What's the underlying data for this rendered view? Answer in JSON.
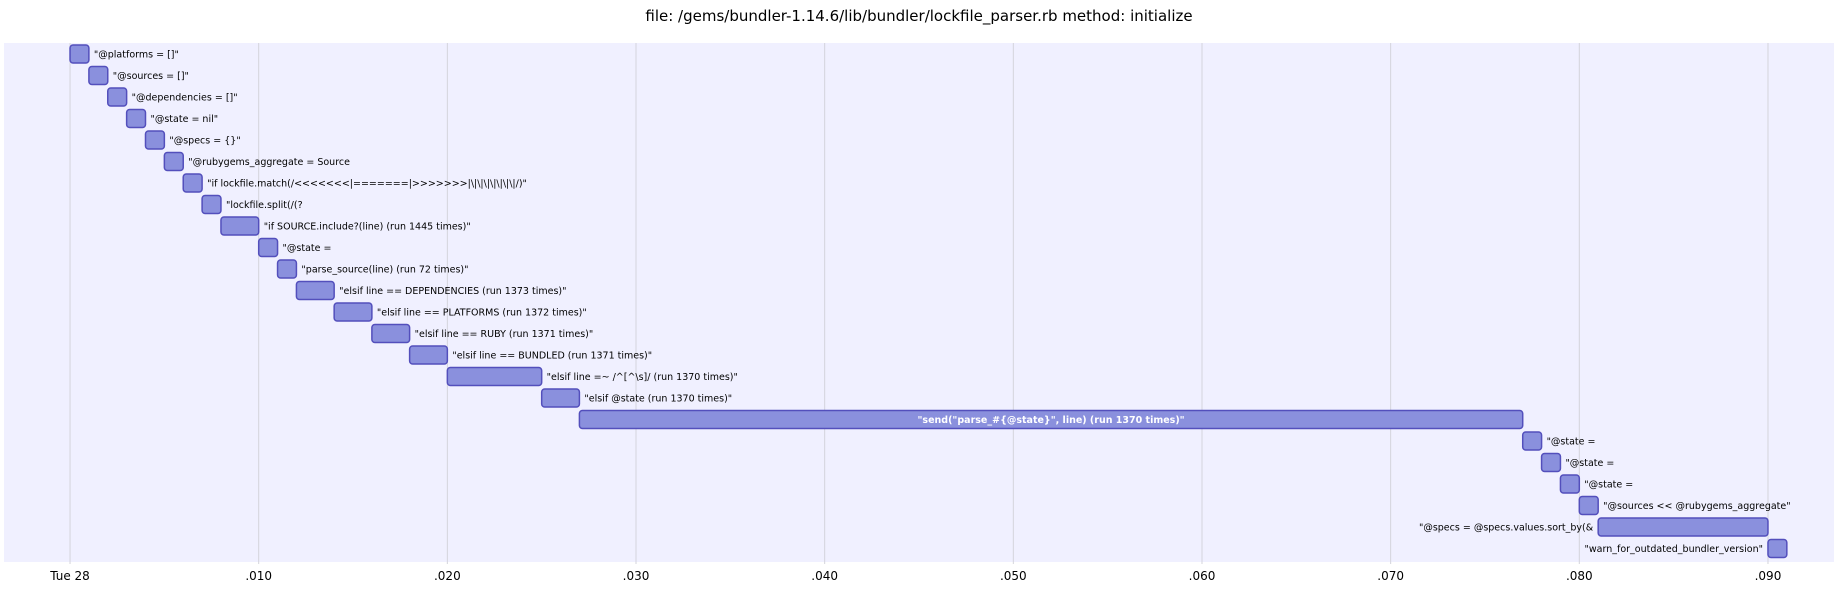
{
  "chart_data": {
    "type": "gantt",
    "title": "file: /gems/bundler-1.14.6/lib/bundler/lockfile_parser.rb method: initialize",
    "x_ticks": [
      {
        "value": 0.0,
        "label": "Tue 28"
      },
      {
        "value": 0.01,
        "label": ".010"
      },
      {
        "value": 0.02,
        "label": ".020"
      },
      {
        "value": 0.03,
        "label": ".030"
      },
      {
        "value": 0.04,
        "label": ".040"
      },
      {
        "value": 0.05,
        "label": ".050"
      },
      {
        "value": 0.06,
        "label": ".060"
      },
      {
        "value": 0.07,
        "label": ".070"
      },
      {
        "value": 0.08,
        "label": ".080"
      },
      {
        "value": 0.09,
        "label": ".090"
      }
    ],
    "xlim": [
      -0.0035,
      0.0935
    ],
    "grid": true,
    "colors": {
      "band": "#f0f0ff",
      "bar_fill": "#8a90dd",
      "bar_stroke": "#534fbc",
      "grid": "#d4d4dc"
    },
    "tasks": [
      {
        "label": "\"@platforms = []\"",
        "start": 0.0,
        "end": 0.001
      },
      {
        "label": "\"@sources = []\"",
        "start": 0.001,
        "end": 0.002
      },
      {
        "label": "\"@dependencies = []\"",
        "start": 0.002,
        "end": 0.003
      },
      {
        "label": "\"@state = nil\"",
        "start": 0.003,
        "end": 0.004
      },
      {
        "label": "\"@specs = {}\"",
        "start": 0.004,
        "end": 0.005
      },
      {
        "label": "\"@rubygems_aggregate = Source",
        "start": 0.005,
        "end": 0.006
      },
      {
        "label": "\"if lockfile.match(/<<<<<<<|=======|>>>>>>>|\\|\\|\\|\\|\\|\\|\\|/)\"",
        "start": 0.006,
        "end": 0.007
      },
      {
        "label": "\"lockfile.split(/(?",
        "start": 0.007,
        "end": 0.008
      },
      {
        "label": "\"if SOURCE.include?(line) (run 1445 times)\"",
        "start": 0.008,
        "end": 0.01
      },
      {
        "label": "\"@state =",
        "start": 0.01,
        "end": 0.011
      },
      {
        "label": "\"parse_source(line) (run 72 times)\"",
        "start": 0.011,
        "end": 0.012
      },
      {
        "label": "\"elsif line == DEPENDENCIES (run 1373 times)\"",
        "start": 0.012,
        "end": 0.014
      },
      {
        "label": "\"elsif line == PLATFORMS (run 1372 times)\"",
        "start": 0.014,
        "end": 0.016
      },
      {
        "label": "\"elsif line == RUBY (run 1371 times)\"",
        "start": 0.016,
        "end": 0.018
      },
      {
        "label": "\"elsif line == BUNDLED (run 1371 times)\"",
        "start": 0.018,
        "end": 0.02
      },
      {
        "label": "\"elsif line =~ /^[^\\s]/ (run 1370 times)\"",
        "start": 0.02,
        "end": 0.025
      },
      {
        "label": "\"elsif @state (run 1370 times)\"",
        "start": 0.025,
        "end": 0.027
      },
      {
        "label": "\"send(\"parse_#{@state}\", line) (run 1370 times)\"",
        "start": 0.027,
        "end": 0.077,
        "label_inside": true
      },
      {
        "label": "\"@state =",
        "start": 0.077,
        "end": 0.078
      },
      {
        "label": "\"@state =",
        "start": 0.078,
        "end": 0.079
      },
      {
        "label": "\"@state =",
        "start": 0.079,
        "end": 0.08
      },
      {
        "label": "\"@sources << @rubygems_aggregate\"",
        "start": 0.08,
        "end": 0.081
      },
      {
        "label": "\"@specs = @specs.values.sort_by(&",
        "start": 0.081,
        "end": 0.09,
        "label_left": true
      },
      {
        "label": "\"warn_for_outdated_bundler_version\"",
        "start": 0.09,
        "end": 0.091,
        "label_left": true
      }
    ]
  }
}
